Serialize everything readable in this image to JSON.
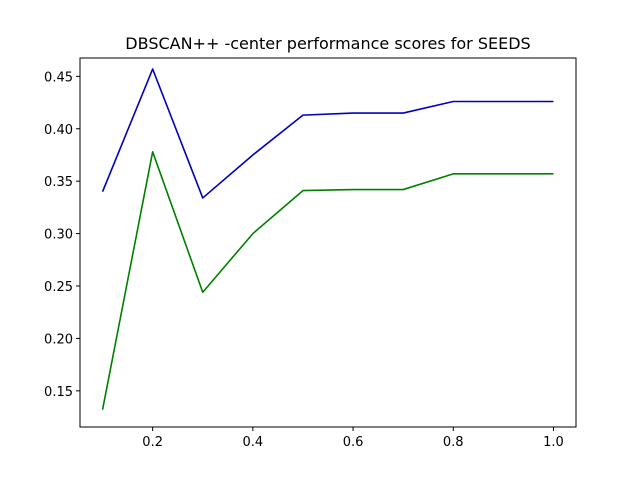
{
  "chart_data": {
    "type": "line",
    "title": "DBSCAN++ -center performance scores for SEEDS",
    "xlabel": "",
    "ylabel": "",
    "x": [
      0.1,
      0.2,
      0.3,
      0.4,
      0.5,
      0.6,
      0.7,
      0.8,
      0.9,
      1.0
    ],
    "series": [
      {
        "color": "#0000bf",
        "values": [
          0.34,
          0.457,
          0.334,
          0.375,
          0.413,
          0.415,
          0.415,
          0.426,
          0.426,
          0.426
        ]
      },
      {
        "color": "#008000",
        "values": [
          0.132,
          0.378,
          0.244,
          0.3,
          0.341,
          0.342,
          0.342,
          0.357,
          0.357,
          0.357
        ]
      }
    ],
    "xlim": [
      0.055,
      1.045
    ],
    "ylim": [
      0.1155,
      0.4675
    ],
    "xticks": [
      0.2,
      0.4,
      0.6,
      0.8,
      1.0
    ],
    "xtick_labels": [
      "0.2",
      "0.4",
      "0.6",
      "0.8",
      "1.0"
    ],
    "yticks": [
      0.15,
      0.2,
      0.25,
      0.3,
      0.35,
      0.4,
      0.45
    ],
    "ytick_labels": [
      "0.15",
      "0.20",
      "0.25",
      "0.30",
      "0.35",
      "0.40",
      "0.45"
    ],
    "grid": false,
    "legend": "none"
  }
}
